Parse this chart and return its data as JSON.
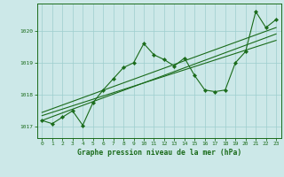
{
  "x": [
    0,
    1,
    2,
    3,
    4,
    5,
    6,
    7,
    8,
    9,
    10,
    11,
    12,
    13,
    14,
    15,
    16,
    17,
    18,
    19,
    20,
    21,
    22,
    23
  ],
  "y": [
    1017.2,
    1017.1,
    1017.3,
    1017.5,
    1017.05,
    1017.75,
    1018.15,
    1018.5,
    1018.85,
    1019.0,
    1019.6,
    1019.25,
    1019.1,
    1018.9,
    1019.15,
    1018.6,
    1018.15,
    1018.1,
    1018.15,
    1019.0,
    1019.35,
    1020.6,
    1020.1,
    1020.35
  ],
  "trend1_x": [
    0,
    23
  ],
  "trend1_y": [
    1017.2,
    1019.9
  ],
  "trend2_x": [
    0,
    23
  ],
  "trend2_y": [
    1017.45,
    1020.1
  ],
  "trend3_x": [
    0,
    23
  ],
  "trend3_y": [
    1017.35,
    1019.7
  ],
  "line_color": "#1a6b1a",
  "bg_color": "#cce8e8",
  "grid_color": "#9ecece",
  "ylabel_vals": [
    1017,
    1018,
    1019,
    1020
  ],
  "xlabel_vals": [
    0,
    1,
    2,
    3,
    4,
    5,
    6,
    7,
    8,
    9,
    10,
    11,
    12,
    13,
    14,
    15,
    16,
    17,
    18,
    19,
    20,
    21,
    22,
    23
  ],
  "xlabel": "Graphe pression niveau de la mer (hPa)",
  "ylim": [
    1016.65,
    1020.85
  ],
  "xlim": [
    -0.5,
    23.5
  ]
}
